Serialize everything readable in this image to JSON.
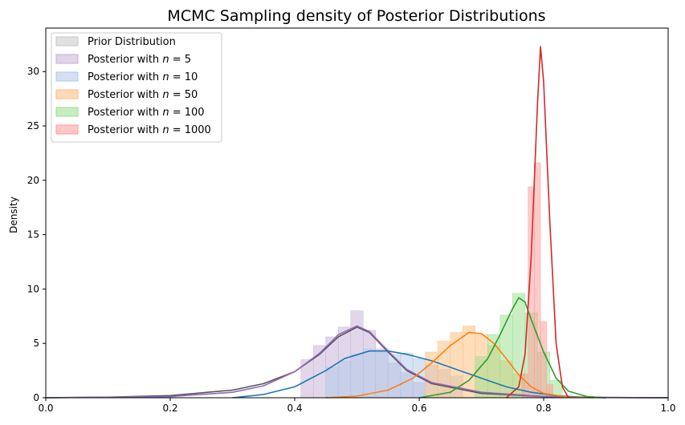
{
  "chart_data": {
    "type": "area",
    "title": "MCMC Sampling density of Posterior Distributions",
    "xlabel": "",
    "ylabel": "Density",
    "xlim": [
      0.0,
      1.0
    ],
    "ylim": [
      0,
      34
    ],
    "xticks": [
      "0.0",
      "0.2",
      "0.4",
      "0.6",
      "0.8",
      "1.0"
    ],
    "yticks": [
      "0",
      "5",
      "10",
      "15",
      "20",
      "25",
      "30"
    ],
    "legend_position": "upper-left",
    "grid": false,
    "series": [
      {
        "name": "Prior Distribution",
        "label_prefix": "Prior Distribution",
        "label_n": "",
        "color": "#555555",
        "fill": "#c7c7c7",
        "kde": [
          [
            0.0,
            0.0
          ],
          [
            0.1,
            0.05
          ],
          [
            0.2,
            0.2
          ],
          [
            0.3,
            0.7
          ],
          [
            0.35,
            1.3
          ],
          [
            0.4,
            2.4
          ],
          [
            0.44,
            4.0
          ],
          [
            0.47,
            5.6
          ],
          [
            0.5,
            6.5
          ],
          [
            0.52,
            6.0
          ],
          [
            0.55,
            4.2
          ],
          [
            0.58,
            2.5
          ],
          [
            0.62,
            1.3
          ],
          [
            0.7,
            0.4
          ],
          [
            0.8,
            0.1
          ],
          [
            0.9,
            0.02
          ],
          [
            1.0,
            0.0
          ]
        ],
        "hist": []
      },
      {
        "name": "Posterior with n=5",
        "label_prefix": "Posterior with ",
        "label_n": "5",
        "color": "#9467bd",
        "fill": "#c5b0d5",
        "kde": [
          [
            0.0,
            0.0
          ],
          [
            0.2,
            0.1
          ],
          [
            0.3,
            0.5
          ],
          [
            0.35,
            1.1
          ],
          [
            0.4,
            2.4
          ],
          [
            0.44,
            4.1
          ],
          [
            0.47,
            5.8
          ],
          [
            0.5,
            6.6
          ],
          [
            0.52,
            6.1
          ],
          [
            0.55,
            4.3
          ],
          [
            0.58,
            2.6
          ],
          [
            0.62,
            1.4
          ],
          [
            0.7,
            0.5
          ],
          [
            0.8,
            0.12
          ],
          [
            0.9,
            0.02
          ],
          [
            1.0,
            0.0
          ]
        ],
        "hist": [
          [
            0.42,
            3.5
          ],
          [
            0.44,
            4.8
          ],
          [
            0.46,
            5.6
          ],
          [
            0.48,
            6.5
          ],
          [
            0.5,
            8.0
          ],
          [
            0.52,
            6.2
          ],
          [
            0.54,
            4.5
          ],
          [
            0.56,
            3.2
          ],
          [
            0.58,
            2.3
          ],
          [
            0.6,
            1.4
          ]
        ]
      },
      {
        "name": "Posterior with n=10",
        "label_prefix": "Posterior with ",
        "label_n": "10",
        "color": "#1f77b4",
        "fill": "#aec7e8",
        "kde": [
          [
            0.3,
            0.0
          ],
          [
            0.35,
            0.3
          ],
          [
            0.4,
            1.0
          ],
          [
            0.45,
            2.5
          ],
          [
            0.48,
            3.6
          ],
          [
            0.52,
            4.3
          ],
          [
            0.55,
            4.3
          ],
          [
            0.58,
            4.0
          ],
          [
            0.62,
            3.4
          ],
          [
            0.66,
            2.6
          ],
          [
            0.7,
            1.8
          ],
          [
            0.74,
            1.0
          ],
          [
            0.78,
            0.5
          ],
          [
            0.82,
            0.2
          ],
          [
            0.86,
            0.05
          ],
          [
            0.9,
            0.0
          ]
        ],
        "hist": [
          [
            0.46,
            2.8
          ],
          [
            0.48,
            3.4
          ],
          [
            0.5,
            4.0
          ],
          [
            0.52,
            4.5
          ],
          [
            0.54,
            4.2
          ],
          [
            0.56,
            4.0
          ],
          [
            0.58,
            4.1
          ],
          [
            0.6,
            3.6
          ],
          [
            0.62,
            3.0
          ],
          [
            0.64,
            2.6
          ],
          [
            0.66,
            2.0
          ]
        ]
      },
      {
        "name": "Posterior with n=50",
        "label_prefix": "Posterior with ",
        "label_n": "50",
        "color": "#ff7f0e",
        "fill": "#ffbb78",
        "kde": [
          [
            0.45,
            0.0
          ],
          [
            0.5,
            0.15
          ],
          [
            0.55,
            0.7
          ],
          [
            0.59,
            1.8
          ],
          [
            0.62,
            3.2
          ],
          [
            0.65,
            4.8
          ],
          [
            0.68,
            6.0
          ],
          [
            0.7,
            5.9
          ],
          [
            0.72,
            5.0
          ],
          [
            0.74,
            3.6
          ],
          [
            0.76,
            2.1
          ],
          [
            0.78,
            1.0
          ],
          [
            0.8,
            0.4
          ],
          [
            0.84,
            0.05
          ],
          [
            0.88,
            0.0
          ]
        ],
        "hist": [
          [
            0.62,
            4.2
          ],
          [
            0.64,
            5.2
          ],
          [
            0.66,
            6.0
          ],
          [
            0.68,
            6.6
          ],
          [
            0.7,
            5.8
          ],
          [
            0.72,
            4.8
          ],
          [
            0.74,
            3.4
          ],
          [
            0.76,
            2.2
          ]
        ]
      },
      {
        "name": "Posterior with n=100",
        "label_prefix": "Posterior with ",
        "label_n": "100",
        "color": "#2ca02c",
        "fill": "#98df8a",
        "kde": [
          [
            0.6,
            0.0
          ],
          [
            0.65,
            0.5
          ],
          [
            0.68,
            1.6
          ],
          [
            0.71,
            3.6
          ],
          [
            0.73,
            5.8
          ],
          [
            0.75,
            8.2
          ],
          [
            0.76,
            9.2
          ],
          [
            0.77,
            8.8
          ],
          [
            0.78,
            7.2
          ],
          [
            0.8,
            4.2
          ],
          [
            0.82,
            1.8
          ],
          [
            0.84,
            0.6
          ],
          [
            0.87,
            0.1
          ],
          [
            0.9,
            0.0
          ]
        ],
        "hist": [
          [
            0.7,
            3.8
          ],
          [
            0.72,
            5.8
          ],
          [
            0.74,
            7.6
          ],
          [
            0.76,
            9.6
          ],
          [
            0.78,
            7.8
          ],
          [
            0.8,
            4.2
          ],
          [
            0.82,
            1.6
          ]
        ]
      },
      {
        "name": "Posterior with n=1000",
        "label_prefix": "Posterior with ",
        "label_n": "1000",
        "color": "#d62728",
        "fill": "#ff9896",
        "kde": [
          [
            0.74,
            0.0
          ],
          [
            0.76,
            1.0
          ],
          [
            0.77,
            4.0
          ],
          [
            0.78,
            13.0
          ],
          [
            0.79,
            27.0
          ],
          [
            0.795,
            32.3
          ],
          [
            0.8,
            29.0
          ],
          [
            0.81,
            16.0
          ],
          [
            0.82,
            5.0
          ],
          [
            0.83,
            1.0
          ],
          [
            0.84,
            0.0
          ]
        ],
        "hist": [
          [
            0.77,
            2.2
          ],
          [
            0.78,
            19.4
          ],
          [
            0.79,
            21.6
          ],
          [
            0.8,
            7.0
          ],
          [
            0.81,
            1.2
          ]
        ]
      }
    ]
  }
}
